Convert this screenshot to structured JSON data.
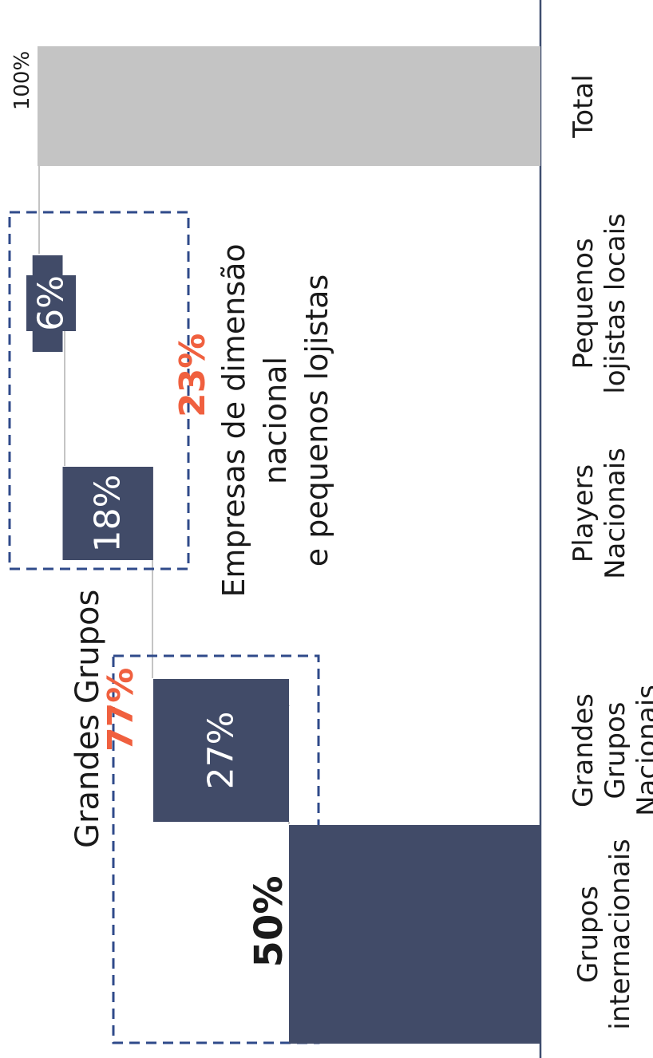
{
  "chart_data": {
    "type": "bar",
    "subtype": "waterfall",
    "orientation": "rotated-90",
    "categories": [
      [
        "Grupos",
        "internacionais"
      ],
      [
        "Grandes",
        "Grupos",
        "Nacionais"
      ],
      [
        "Players",
        "Nacionais"
      ],
      [
        "Pequenos",
        "lojistas locais"
      ],
      [
        "Total"
      ]
    ],
    "values": [
      50,
      27,
      18,
      6,
      100
    ],
    "value_labels": [
      "50%",
      "27%",
      "18%",
      "6%",
      "100%"
    ],
    "ylim": [
      0,
      100
    ],
    "colors": {
      "bar": "#414b68",
      "total": "#c4c4c4",
      "accent": "#f0603f",
      "frame": "#2f4a8a",
      "axis": "#3e4d6f"
    },
    "groups": [
      {
        "name": "Grandes Grupos",
        "value_label": "77%",
        "members": [
          "Grupos internacionais",
          "Grandes Grupos Nacionais"
        ]
      },
      {
        "name_lines": [
          "Empresas de dimensão",
          "nacional",
          "e pequenos lojistas"
        ],
        "value_label": "23%",
        "members": [
          "Players Nacionais",
          "Pequenos lojistas locais"
        ]
      }
    ]
  }
}
